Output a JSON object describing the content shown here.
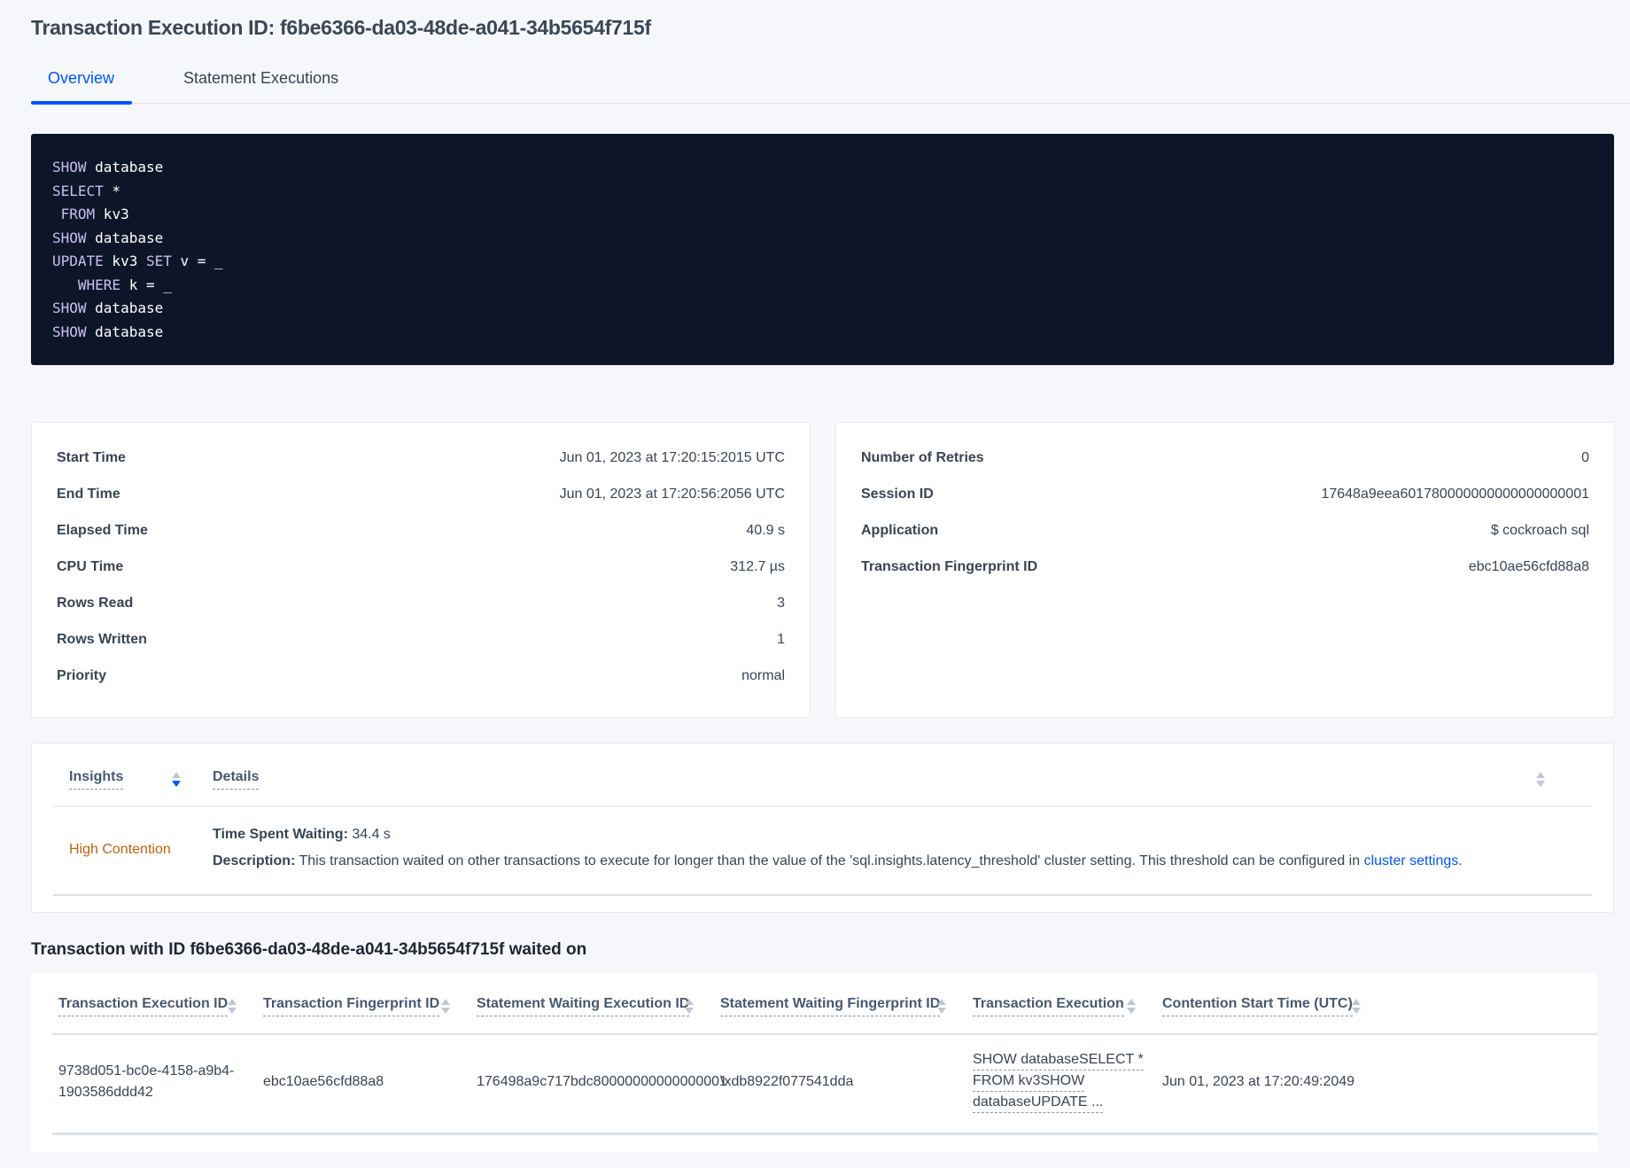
{
  "title": "Transaction Execution ID: f6be6366-da03-48de-a041-34b5654f715f",
  "tabs": [
    {
      "label": "Overview",
      "active": true
    },
    {
      "label": "Statement Executions",
      "active": false
    }
  ],
  "sql": [
    [
      {
        "t": "SHOW",
        "kw": true
      },
      {
        "t": " database"
      }
    ],
    [
      {
        "t": "SELECT",
        "kw": true
      },
      {
        "t": " *"
      }
    ],
    [
      {
        "t": " FROM",
        "kw": true
      },
      {
        "t": " kv3"
      }
    ],
    [
      {
        "t": "SHOW",
        "kw": true
      },
      {
        "t": " database"
      }
    ],
    [
      {
        "t": "UPDATE",
        "kw": true
      },
      {
        "t": " kv3 "
      },
      {
        "t": "SET",
        "kw": true
      },
      {
        "t": " v = _"
      }
    ],
    [
      {
        "t": "   WHERE",
        "kw": true
      },
      {
        "t": " k = _"
      }
    ],
    [
      {
        "t": "SHOW",
        "kw": true
      },
      {
        "t": " database"
      }
    ],
    [
      {
        "t": "SHOW",
        "kw": true
      },
      {
        "t": " database"
      }
    ]
  ],
  "left_card": [
    {
      "label": "Start Time",
      "value": "Jun 01, 2023 at 17:20:15:2015 UTC"
    },
    {
      "label": "End Time",
      "value": "Jun 01, 2023 at 17:20:56:2056 UTC"
    },
    {
      "label": "Elapsed Time",
      "value": "40.9 s"
    },
    {
      "label": "CPU Time",
      "value": "312.7 µs"
    },
    {
      "label": "Rows Read",
      "value": "3"
    },
    {
      "label": "Rows Written",
      "value": "1"
    },
    {
      "label": "Priority",
      "value": "normal"
    }
  ],
  "right_card": [
    {
      "label": "Number of Retries",
      "value": "0"
    },
    {
      "label": "Session ID",
      "value": "17648a9eea601780000000000000000001"
    },
    {
      "label": "Application",
      "value": "$ cockroach sql"
    },
    {
      "label": "Transaction Fingerprint ID",
      "value": "ebc10ae56cfd88a8",
      "link": true
    }
  ],
  "insights": {
    "headers": {
      "insights": "Insights",
      "details": "Details"
    },
    "row": {
      "type": "High Contention",
      "type_color": "#c0620c",
      "time_label": "Time Spent Waiting:",
      "time_value": " 34.4 s",
      "desc_label": "Description:",
      "desc_text": " This transaction waited on other transactions to execute for longer than the value of the 'sql.insights.latency_threshold' cluster setting. This threshold can be configured in ",
      "desc_link": "cluster settings",
      "desc_end": "."
    }
  },
  "waited_heading": "Transaction with ID f6be6366-da03-48de-a041-34b5654f715f waited on",
  "waited_table": {
    "headers": [
      "Transaction Execution ID",
      "Transaction Fingerprint ID",
      "Statement Waiting Execution ID",
      "Statement Waiting Fingerprint ID",
      "Transaction Execution",
      "Contention Start Time (UTC)"
    ],
    "rows": [
      {
        "txn_exec_id": "9738d051-bc0e-4158-a9b4-1903586ddd42",
        "txn_fp_id": "ebc10ae56cfd88a8",
        "stmt_exec_id": "176498a9c717bdc80000000000000001",
        "stmt_fp_id": "\\xdb8922f077541dda",
        "txn_exec": [
          "SHOW databaseSELECT *",
          "FROM kv3SHOW",
          "databaseUPDATE ..."
        ],
        "start_time": "Jun 01, 2023 at 17:20:49:2049"
      }
    ]
  }
}
